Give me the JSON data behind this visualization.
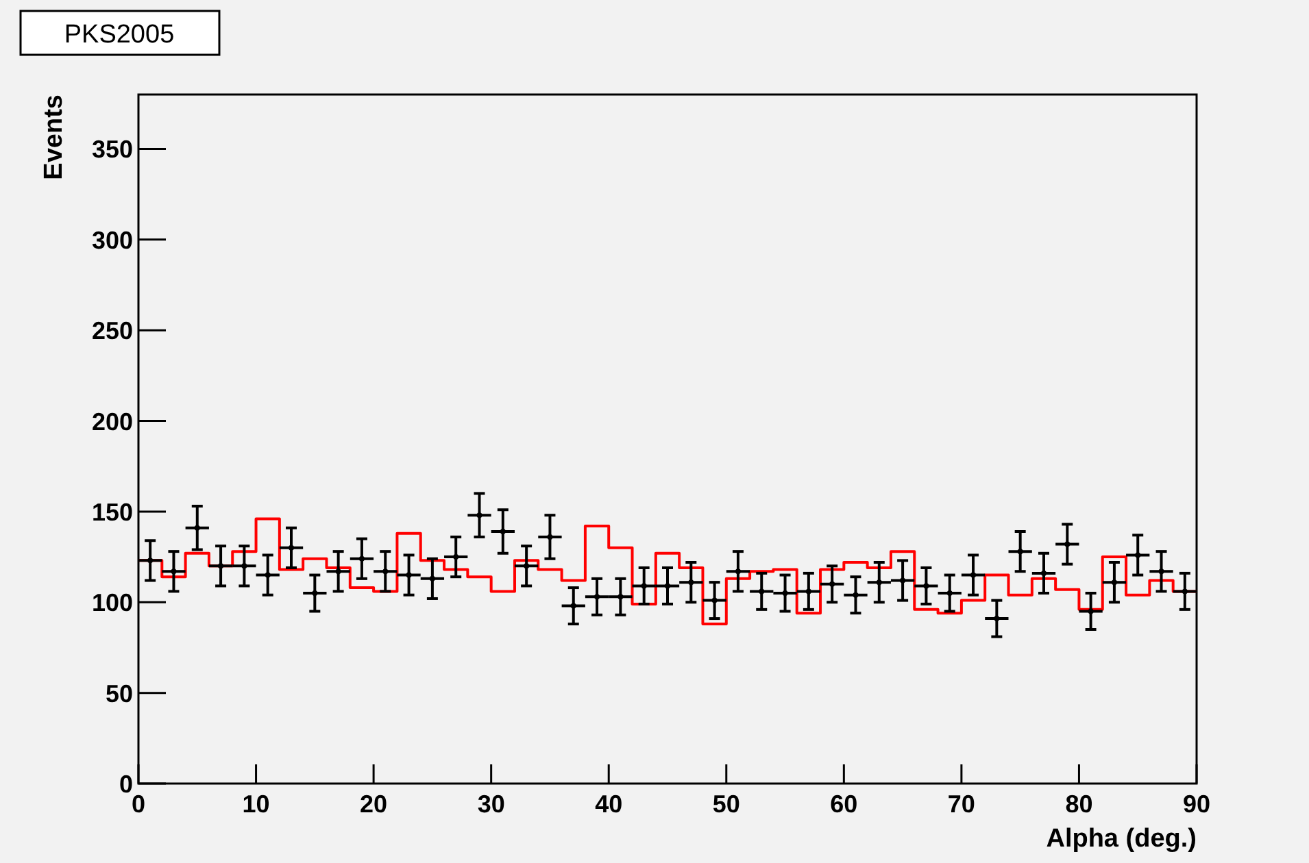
{
  "chart_data": {
    "type": "scatter",
    "title": "PKS2005",
    "xlabel": "Alpha (deg.)",
    "ylabel": "Events",
    "xlim": [
      0,
      90
    ],
    "ylim": [
      0,
      380
    ],
    "xticks": [
      0,
      10,
      20,
      30,
      40,
      50,
      60,
      70,
      80,
      90
    ],
    "yticks": [
      0,
      50,
      100,
      150,
      200,
      250,
      300,
      350
    ],
    "grid": false,
    "marker": "circle",
    "series": [
      {
        "type": "histogram",
        "color": "#ff0000",
        "bins": [
          0,
          2,
          4,
          6,
          8,
          10,
          12,
          14,
          16,
          18,
          20,
          22,
          24,
          26,
          28,
          30,
          32,
          34,
          36,
          38,
          40,
          42,
          44,
          46,
          48,
          50,
          52,
          54,
          56,
          58,
          60,
          62,
          64,
          66,
          68,
          70,
          72,
          74,
          76,
          78,
          80,
          82,
          84,
          86,
          88,
          90
        ],
        "values": [
          123,
          114,
          127,
          120,
          128,
          146,
          118,
          124,
          119,
          108,
          106,
          138,
          123,
          118,
          114,
          106,
          123,
          118,
          112,
          142,
          130,
          99,
          127,
          119,
          88,
          113,
          117,
          118,
          94,
          118,
          122,
          119,
          128,
          96,
          94,
          101,
          115,
          104,
          113,
          107,
          96,
          125,
          104,
          112,
          106
        ]
      },
      {
        "type": "scatter",
        "color": "#000000",
        "x": [
          1,
          3,
          5,
          7,
          9,
          11,
          13,
          15,
          17,
          19,
          21,
          23,
          25,
          27,
          29,
          31,
          33,
          35,
          37,
          39,
          41,
          43,
          45,
          47,
          49,
          51,
          53,
          55,
          57,
          59,
          61,
          63,
          65,
          67,
          69,
          71,
          73,
          75,
          77,
          79,
          81,
          83,
          85,
          87,
          89
        ],
        "values": [
          123,
          117,
          141,
          120,
          120,
          115,
          130,
          105,
          117,
          124,
          117,
          115,
          113,
          125,
          148,
          139,
          120,
          136,
          98,
          103,
          103,
          109,
          109,
          111,
          101,
          117,
          106,
          105,
          106,
          110,
          104,
          111,
          112,
          109,
          105,
          115,
          91,
          128,
          116,
          132,
          95,
          111,
          126,
          117,
          106
        ],
        "errors": [
          11,
          11,
          12,
          11,
          11,
          11,
          11,
          10,
          11,
          11,
          11,
          11,
          11,
          11,
          12,
          12,
          11,
          12,
          10,
          10,
          10,
          10,
          10,
          11,
          10,
          11,
          10,
          10,
          10,
          10,
          10,
          11,
          11,
          10,
          10,
          11,
          10,
          11,
          11,
          11,
          10,
          11,
          11,
          11,
          10
        ],
        "xerrors": [
          1,
          1,
          1,
          1,
          1,
          1,
          1,
          1,
          1,
          1,
          1,
          1,
          1,
          1,
          1,
          1,
          1,
          1,
          1,
          1,
          1,
          1,
          1,
          1,
          1,
          1,
          1,
          1,
          1,
          1,
          1,
          1,
          1,
          1,
          1,
          1,
          1,
          1,
          1,
          1,
          1,
          1,
          1,
          1,
          1
        ]
      }
    ]
  }
}
